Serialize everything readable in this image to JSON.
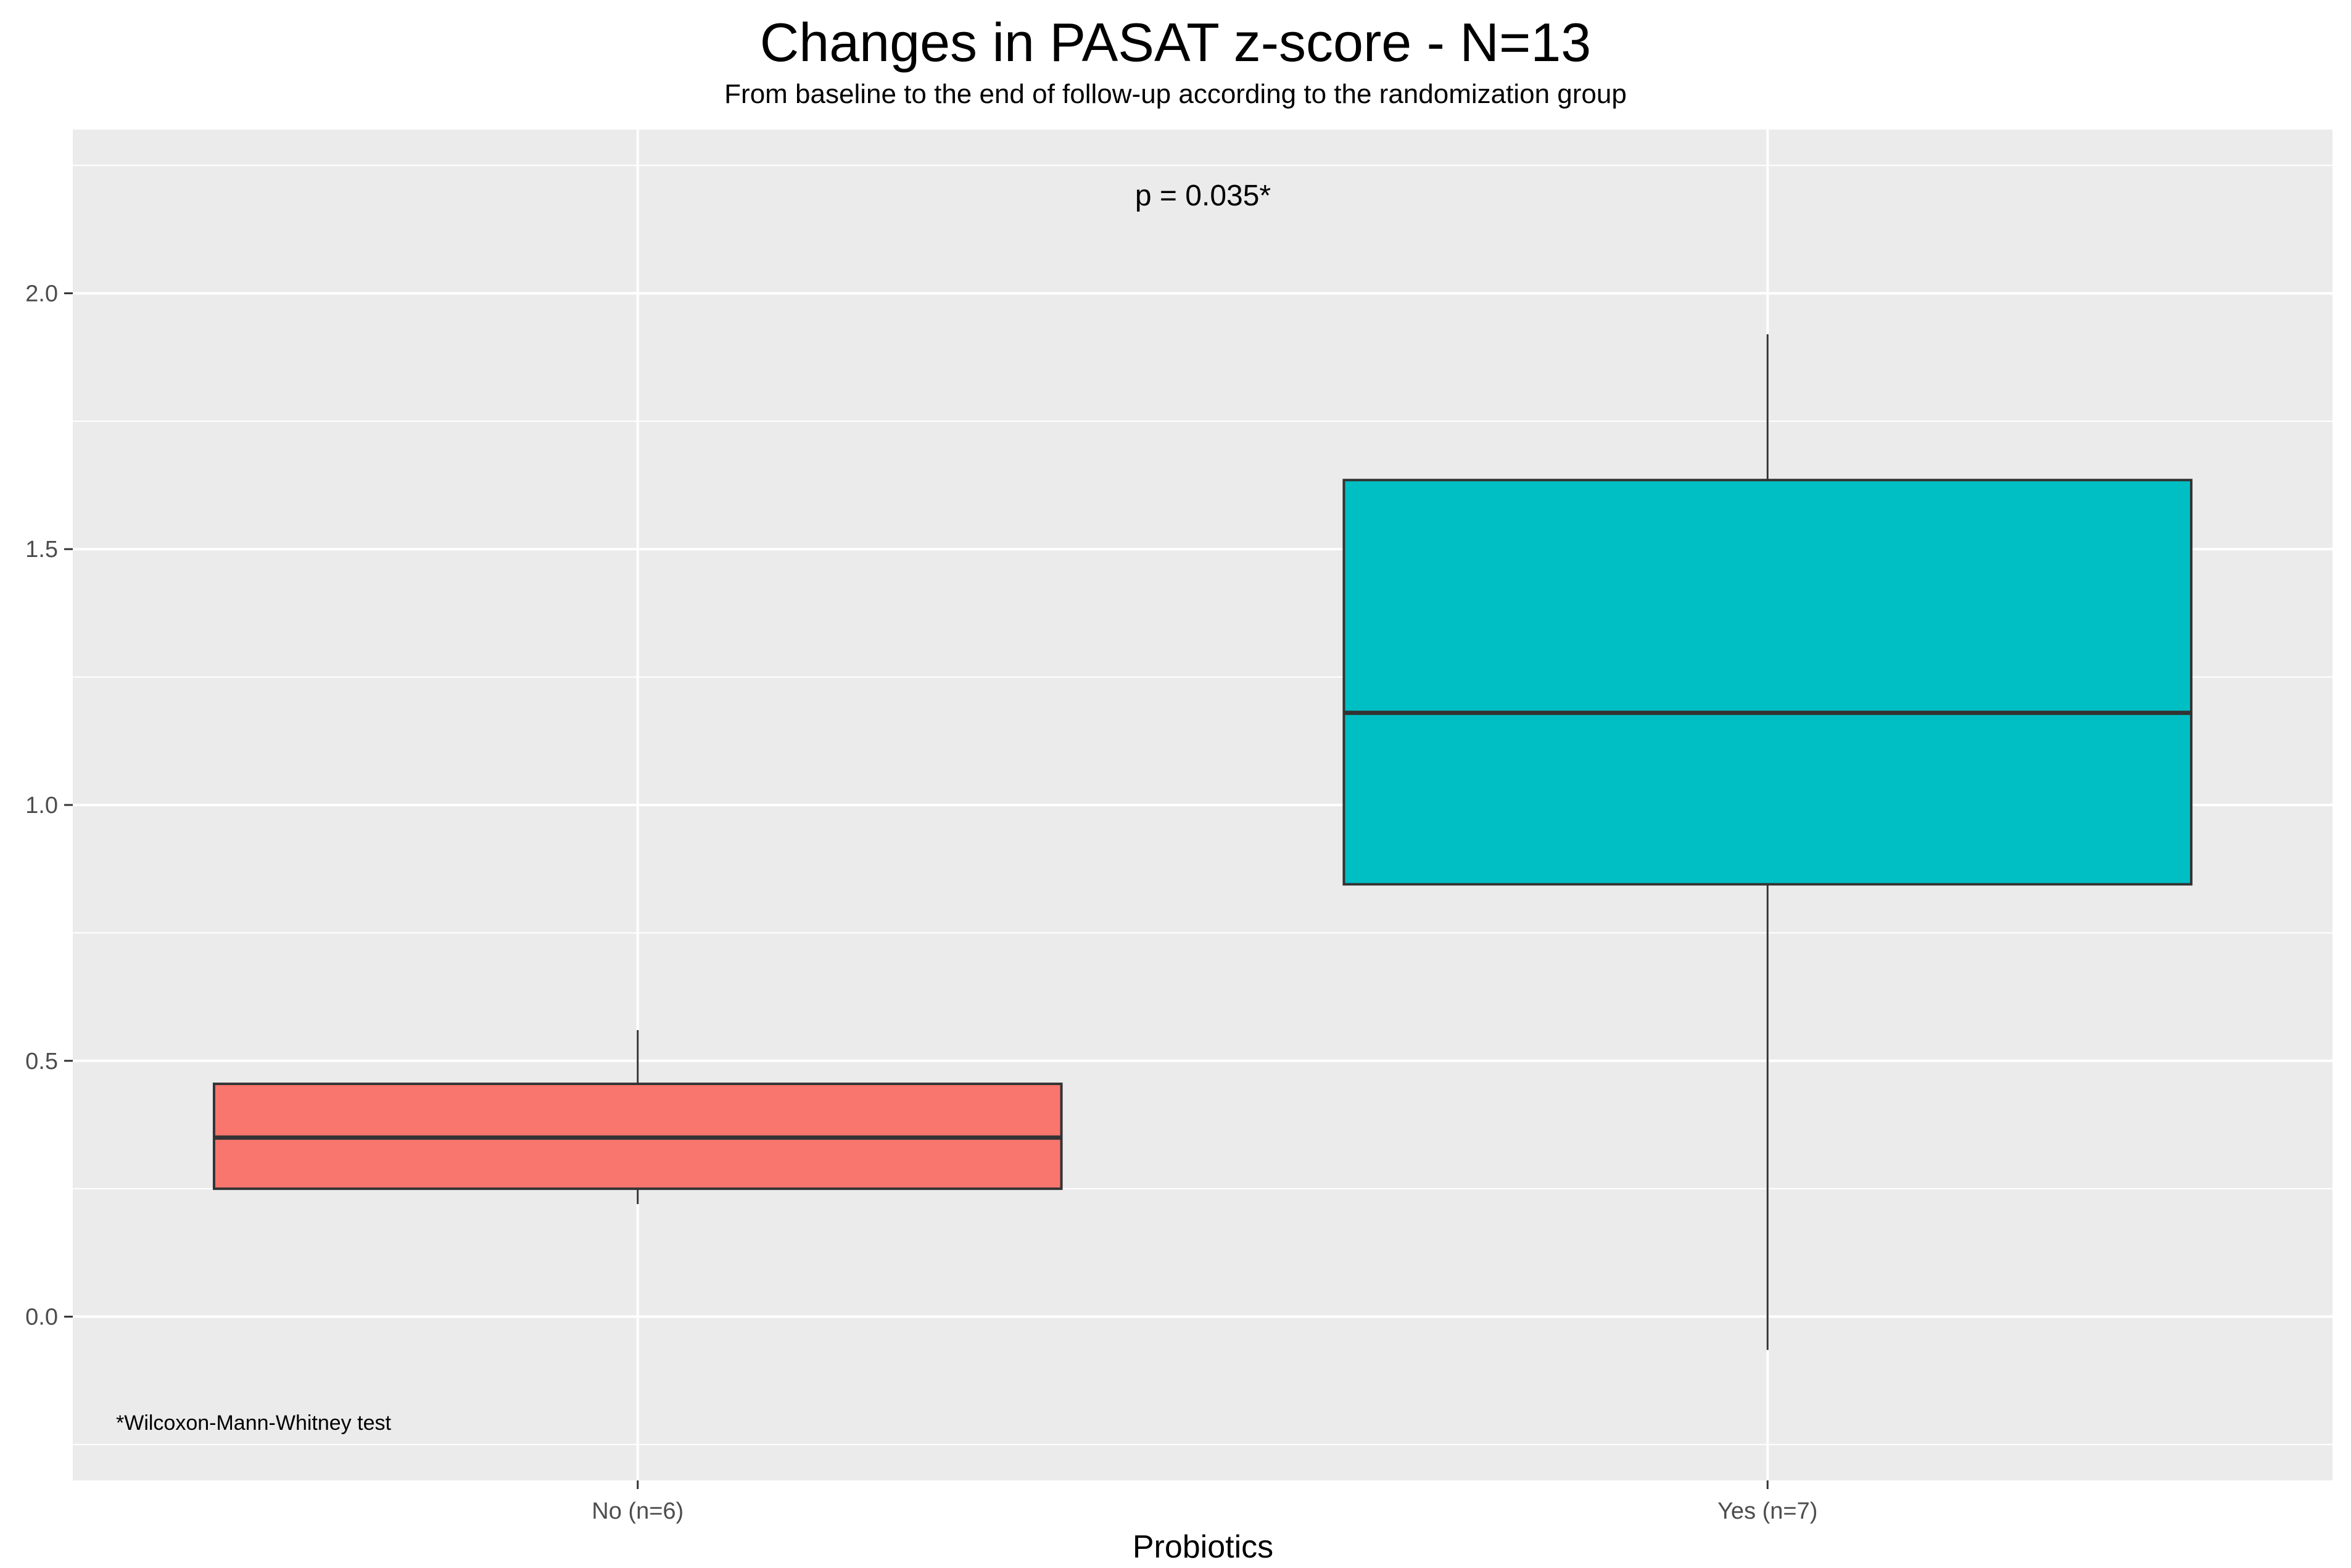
{
  "chart_data": {
    "type": "boxplot",
    "title": "Changes in PASAT z-score - N=13",
    "subtitle": "From baseline to the end of follow-up according to the randomization group",
    "xlabel": "Probiotics",
    "ylabel": "",
    "ylim": [
      -0.32,
      2.32
    ],
    "y_ticks": [
      "0.0",
      "0.5",
      "1.0",
      "1.5",
      "2.0"
    ],
    "categories": [
      "No (n=6)",
      "Yes (n=7)"
    ],
    "boxes": [
      {
        "category": "No (n=6)",
        "min": 0.22,
        "q1": 0.25,
        "median": 0.35,
        "q3": 0.455,
        "max": 0.56,
        "color": "#F8766D"
      },
      {
        "category": "Yes (n=7)",
        "min": -0.065,
        "q1": 0.845,
        "median": 1.18,
        "q3": 1.635,
        "max": 1.92,
        "color": "#00BFC4"
      }
    ],
    "annotations": {
      "p_value": "p = 0.035*",
      "footnote": "*Wilcoxon-Mann-Whitney test"
    },
    "grid": true,
    "panel_background": "#EBEBEB",
    "legend": "none"
  }
}
